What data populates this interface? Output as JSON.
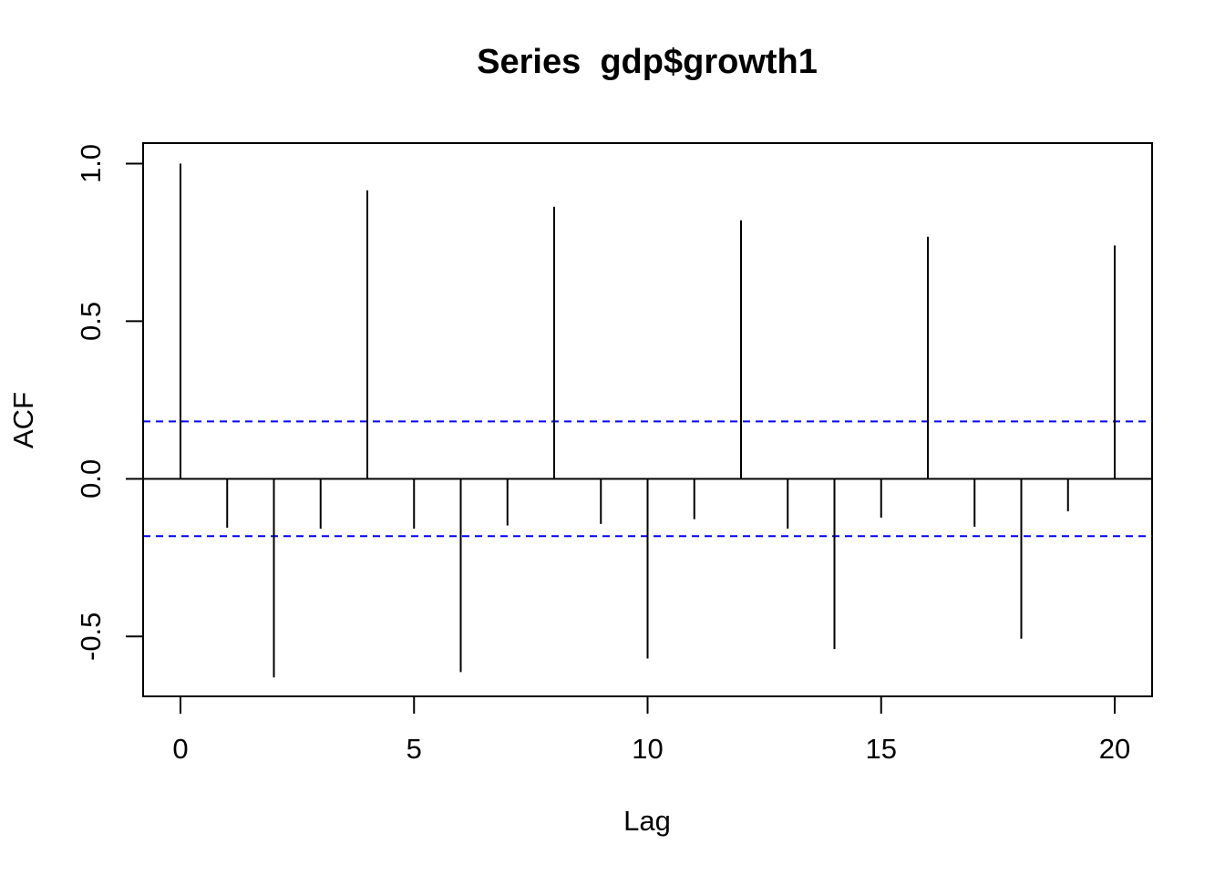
{
  "chart_data": {
    "type": "bar",
    "title": "Series  gdp$growth1",
    "xlabel": "Lag",
    "ylabel": "ACF",
    "xlim": [
      -0.8,
      20.8
    ],
    "ylim": [
      -0.69,
      1.065
    ],
    "x_ticks": [
      0,
      5,
      10,
      15,
      20
    ],
    "x_tick_labels": [
      "0",
      "5",
      "10",
      "15",
      "20"
    ],
    "y_ticks": [
      -0.5,
      0.0,
      0.5,
      1.0
    ],
    "y_tick_labels": [
      "-0.5",
      "0.0",
      "0.5",
      "1.0"
    ],
    "lags": [
      0,
      1,
      2,
      3,
      4,
      5,
      6,
      7,
      8,
      9,
      10,
      11,
      12,
      13,
      14,
      15,
      16,
      17,
      18,
      19,
      20
    ],
    "acf": [
      1.0,
      -0.155,
      -0.63,
      -0.158,
      0.915,
      -0.158,
      -0.613,
      -0.148,
      0.863,
      -0.143,
      -0.57,
      -0.128,
      0.82,
      -0.158,
      -0.54,
      -0.123,
      0.768,
      -0.152,
      -0.507,
      -0.103,
      0.74
    ],
    "confidence_bound": 0.182,
    "confidence_line_color": "#0000ff",
    "zero_line": true,
    "grid": false
  }
}
